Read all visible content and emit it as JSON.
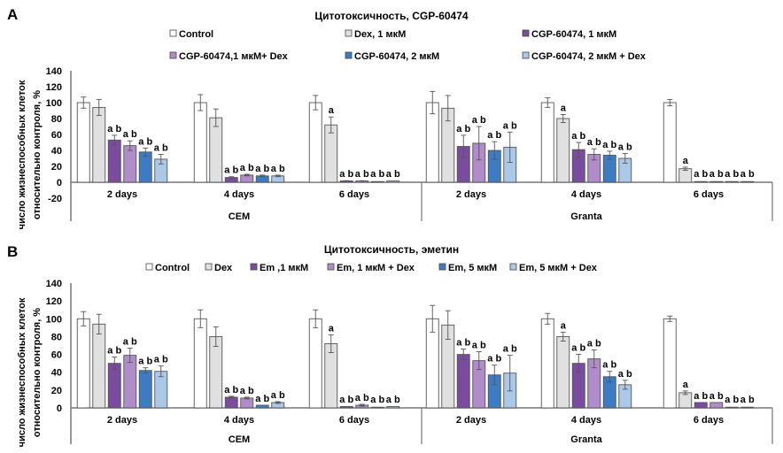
{
  "chart_data": [
    {
      "panel": "A",
      "type": "bar",
      "title": "Цитотоксичность, CGP-60474",
      "ylabel": "число жизнеспособных клеток относительно контроля, %",
      "xlabel": "",
      "ylim": [
        -20,
        140
      ],
      "yticks": [
        -20,
        0,
        20,
        40,
        60,
        80,
        100,
        120,
        140
      ],
      "groups": [
        "CEM",
        "Granta"
      ],
      "categories": [
        "2 days",
        "4 days",
        "6 days",
        "2 days",
        "4 days",
        "6 days"
      ],
      "category_group": [
        "CEM",
        "CEM",
        "CEM",
        "Granta",
        "Granta",
        "Granta"
      ],
      "legend_position": "top",
      "series": [
        {
          "name": "Control",
          "color": "#ffffff",
          "values": [
            100,
            100,
            100,
            100,
            100,
            100
          ],
          "errors": [
            7,
            10,
            9,
            14,
            6,
            4
          ],
          "annotations": [
            "",
            "",
            "",
            "",
            "",
            ""
          ]
        },
        {
          "name": "Dex, 1 мкМ",
          "color": "#e0e0e0",
          "values": [
            94,
            81,
            72,
            93,
            80,
            17
          ],
          "errors": [
            10,
            11,
            10,
            16,
            5,
            2
          ],
          "annotations": [
            "",
            "",
            "a",
            "",
            "a",
            "a"
          ]
        },
        {
          "name": "CGP-60474, 1 мкМ",
          "color": "#7b4ba0",
          "values": [
            53,
            6,
            1,
            45,
            41,
            0
          ],
          "errors": [
            6,
            1,
            1,
            14,
            9,
            0
          ],
          "annotations": [
            "a b",
            "a b",
            "a b",
            "a b",
            "a b",
            "a b"
          ]
        },
        {
          "name": "CGP-60474,1 мкМ+ Dex",
          "color": "#b18ccb",
          "values": [
            46,
            9,
            1,
            49,
            35,
            0
          ],
          "errors": [
            6,
            1,
            1,
            21,
            7,
            0
          ],
          "annotations": [
            "a b",
            "a b",
            "a b",
            "a b",
            "a b",
            "a b"
          ]
        },
        {
          "name": "CGP-60474, 2 мкМ",
          "color": "#3b7cc4",
          "values": [
            38,
            8,
            0,
            40,
            34,
            0
          ],
          "errors": [
            5,
            1,
            0,
            11,
            5,
            0
          ],
          "annotations": [
            "a b",
            "a b",
            "a b",
            "a b",
            "a b",
            "a b"
          ]
        },
        {
          "name": "CGP-60474, 2 мкМ + Dex",
          "color": "#aac8e8",
          "values": [
            29,
            8,
            1,
            44,
            30,
            0
          ],
          "errors": [
            6,
            1,
            0,
            19,
            6,
            0
          ],
          "annotations": [
            "a b",
            "a b",
            "a b",
            "a b",
            "a b",
            "a b"
          ]
        }
      ]
    },
    {
      "panel": "B",
      "type": "bar",
      "title": "Цитотоксичность, эметин",
      "ylabel": "число жизнеспособных клеток относительно контроля, %",
      "xlabel": "",
      "ylim": [
        0,
        140
      ],
      "yticks": [
        0,
        20,
        40,
        60,
        80,
        100,
        120,
        140
      ],
      "groups": [
        "CEM",
        "Granta"
      ],
      "categories": [
        "2 days",
        "4 days",
        "6 days",
        "2 days",
        "4 days",
        "6 days"
      ],
      "category_group": [
        "CEM",
        "CEM",
        "CEM",
        "Granta",
        "Granta",
        "Granta"
      ],
      "legend_position": "top",
      "series": [
        {
          "name": "Control",
          "color": "#ffffff",
          "values": [
            100,
            100,
            100,
            100,
            100,
            100
          ],
          "errors": [
            8,
            10,
            10,
            15,
            6,
            3
          ],
          "annotations": [
            "",
            "",
            "",
            "",
            "",
            ""
          ]
        },
        {
          "name": "Dex",
          "color": "#e0e0e0",
          "values": [
            94,
            80,
            72,
            93,
            80,
            17
          ],
          "errors": [
            11,
            11,
            10,
            16,
            5,
            2
          ],
          "annotations": [
            "",
            "",
            "a",
            "",
            "a",
            "a"
          ]
        },
        {
          "name": "Em ,1 мкМ",
          "color": "#7b4ba0",
          "values": [
            50,
            12,
            1,
            60,
            50,
            6
          ],
          "errors": [
            7,
            1,
            0,
            6,
            10,
            0
          ],
          "annotations": [
            "a b",
            "a b",
            "a b",
            "a b",
            "a b",
            "a b"
          ]
        },
        {
          "name": "Em, 1 мкМ + Dex",
          "color": "#b18ccb",
          "values": [
            59,
            11,
            3,
            53,
            55,
            6
          ],
          "errors": [
            8,
            1,
            1,
            10,
            10,
            0
          ],
          "annotations": [
            "a b",
            "a b",
            "a b",
            "a b",
            "a b",
            "a b"
          ]
        },
        {
          "name": "Em, 5 мкМ",
          "color": "#3b7cc4",
          "values": [
            42,
            3,
            0,
            37,
            35,
            0
          ],
          "errors": [
            3,
            0,
            0,
            11,
            6,
            0
          ],
          "annotations": [
            "a b",
            "a b",
            "a b",
            "a b",
            "a b",
            "a b"
          ]
        },
        {
          "name": "Em, 5 мкМ + Dex",
          "color": "#aac8e8",
          "values": [
            41,
            6,
            1,
            39,
            26,
            0
          ],
          "errors": [
            6,
            1,
            0,
            20,
            5,
            0
          ],
          "annotations": [
            "a b",
            "a b",
            "a b",
            "a b",
            "a b",
            "a b"
          ]
        }
      ]
    }
  ]
}
